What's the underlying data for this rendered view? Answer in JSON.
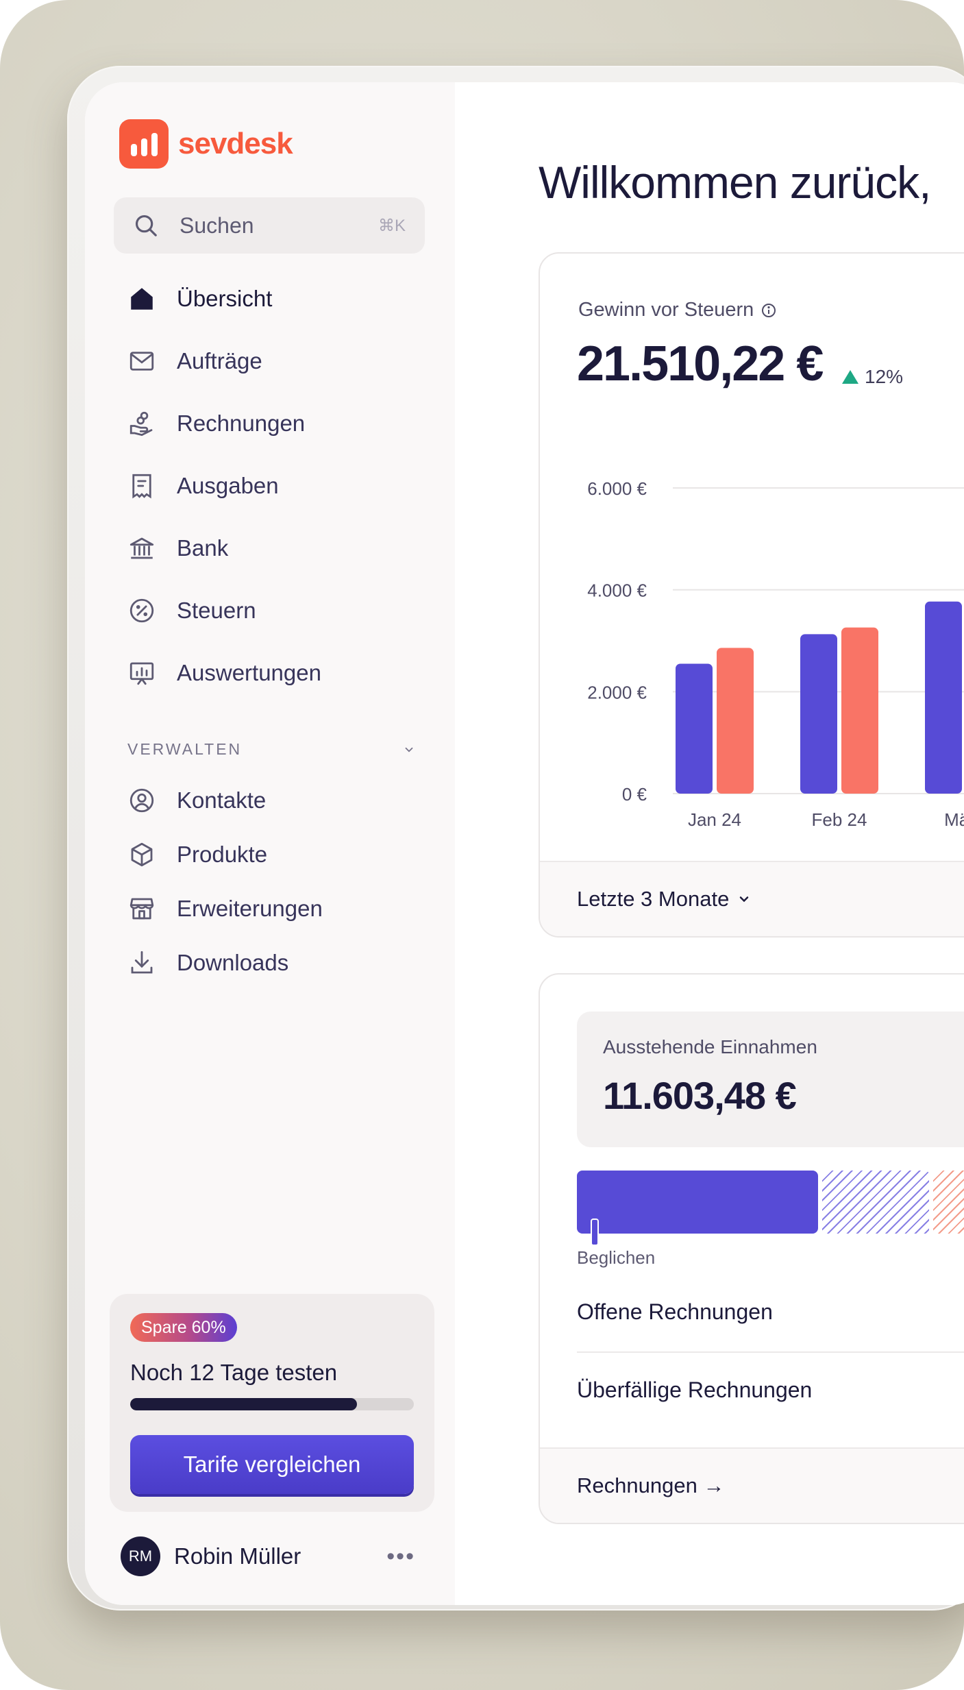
{
  "app": {
    "brand": "sevdesk",
    "brand_color": "#f75a3d",
    "accent_color": "#574bd6",
    "secondary_color": "#f97466"
  },
  "search": {
    "placeholder": "Suchen",
    "shortcut": "⌘K"
  },
  "sidebar": {
    "items": [
      {
        "label": "Übersicht",
        "icon": "home-icon",
        "active": true
      },
      {
        "label": "Aufträge",
        "icon": "mail-icon"
      },
      {
        "label": "Rechnungen",
        "icon": "coins-hand-icon"
      },
      {
        "label": "Ausgaben",
        "icon": "receipt-icon"
      },
      {
        "label": "Bank",
        "icon": "bank-icon"
      },
      {
        "label": "Steuern",
        "icon": "percent-icon"
      },
      {
        "label": "Auswertungen",
        "icon": "presentation-chart-icon"
      }
    ],
    "section_title": "VERWALTEN",
    "manage_items": [
      {
        "label": "Kontakte",
        "icon": "user-circle-icon"
      },
      {
        "label": "Produkte",
        "icon": "box-icon"
      },
      {
        "label": "Erweiterungen",
        "icon": "store-icon"
      },
      {
        "label": "Downloads",
        "icon": "download-icon"
      }
    ]
  },
  "trial": {
    "badge": "Spare 60%",
    "title": "Noch 12 Tage testen",
    "progress_fraction": 0.8,
    "button": "Tarife vergleichen"
  },
  "user": {
    "initials": "RM",
    "name": "Robin Müller"
  },
  "main": {
    "welcome": "Willkommen zurück,"
  },
  "profit_card": {
    "label": "Gewinn vor Steuern",
    "value": "21.510,22 €",
    "delta": "12%",
    "delta_direction": "up",
    "footer": "Letzte 3 Monate"
  },
  "chart_data": {
    "type": "bar",
    "categories": [
      "Jan 24",
      "Feb 24",
      "März"
    ],
    "series": [
      {
        "color": "#574bd6",
        "values": [
          2550,
          3130,
          3770
        ]
      },
      {
        "color": "#f97466",
        "values": [
          2860,
          3260,
          null
        ]
      }
    ],
    "ylim": [
      0,
      6000
    ],
    "yticks": [
      0,
      2000,
      4000,
      6000
    ],
    "ytick_labels": [
      "0 €",
      "2.000 €",
      "4.000 €",
      "6.000 €"
    ],
    "grid": true
  },
  "income_card": {
    "label": "Ausstehende Einnahmen",
    "value": "11.603,48 €",
    "segment_label": "Beglichen",
    "rows": [
      "Offene Rechnungen",
      "Überfällige Rechnungen"
    ],
    "footer": "Rechnungen →"
  }
}
